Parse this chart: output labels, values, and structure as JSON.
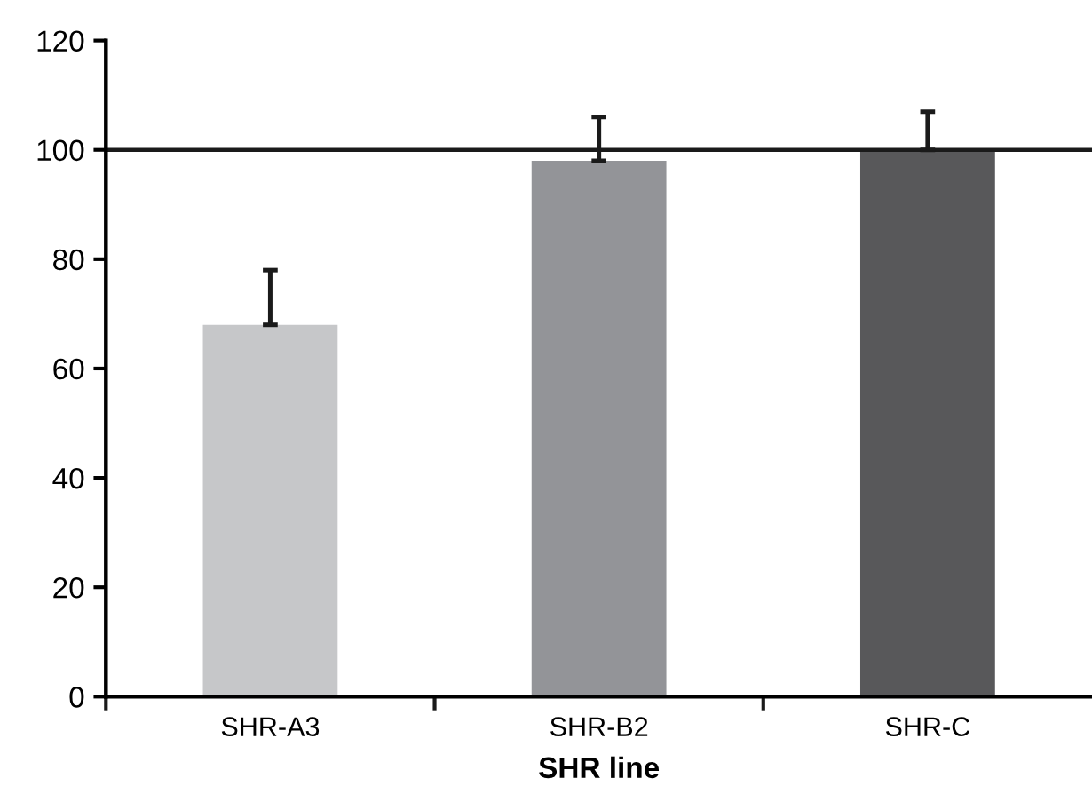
{
  "chart_data": {
    "type": "bar",
    "xlabel": "SHR line",
    "categories": [
      "SHR-A3",
      "SHR-B2",
      "SHR-C"
    ],
    "values": [
      68,
      98,
      100
    ],
    "colors": [
      "#c6c7c9",
      "#939498",
      "#58585a"
    ],
    "errors": [
      [
        68,
        78
      ],
      [
        98,
        106
      ],
      [
        100,
        107
      ]
    ],
    "ylim": [
      0,
      120
    ],
    "yticks": [
      0,
      20,
      40,
      60,
      80,
      100,
      120
    ],
    "ref_lines": [
      {
        "axis": "y",
        "value": 100,
        "color": "#1a1a1a"
      }
    ],
    "grid": false,
    "legend": false
  }
}
